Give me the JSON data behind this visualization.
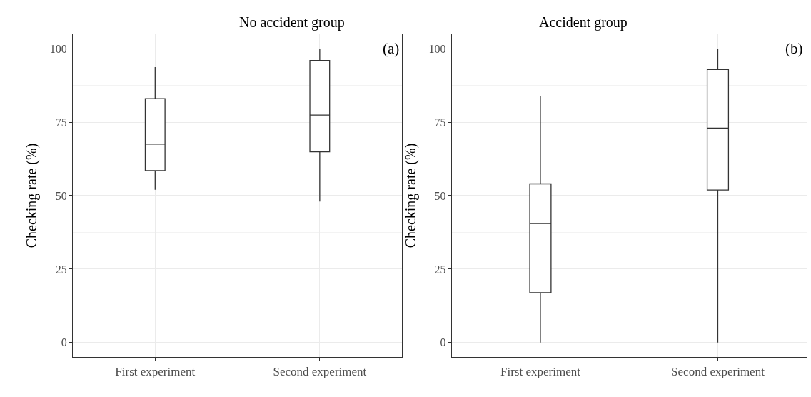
{
  "chart_data": [
    {
      "type": "box",
      "title": "No accident group",
      "ylabel": "Checking rate (%)",
      "categories": [
        "First experiment",
        "Second experiment"
      ],
      "color": "#333333",
      "boxes": [
        {
          "low": 52,
          "q1": 58.5,
          "median": 67.5,
          "q3": 83,
          "high": 93.7
        },
        {
          "low": 48,
          "q1": 64.9,
          "median": 77.4,
          "q3": 96,
          "high": 100
        }
      ],
      "ylim": [
        -5,
        105
      ],
      "yticks": [
        0,
        25,
        50,
        75,
        100
      ],
      "grid": true,
      "annotations": [
        "(a)"
      ]
    },
    {
      "type": "box",
      "title": "Accident group",
      "ylabel": "Checking rate (%)",
      "categories": [
        "First experiment",
        "Second experiment"
      ],
      "color": "#333333",
      "boxes": [
        {
          "low": 0,
          "q1": 17,
          "median": 40.5,
          "q3": 54,
          "high": 83.8
        },
        {
          "low": 0,
          "q1": 51.9,
          "median": 73,
          "q3": 92.9,
          "high": 100
        }
      ],
      "ylim": [
        -5,
        105
      ],
      "yticks": [
        0,
        25,
        50,
        75,
        100
      ],
      "grid": true,
      "annotations": [
        "(b)"
      ]
    }
  ]
}
